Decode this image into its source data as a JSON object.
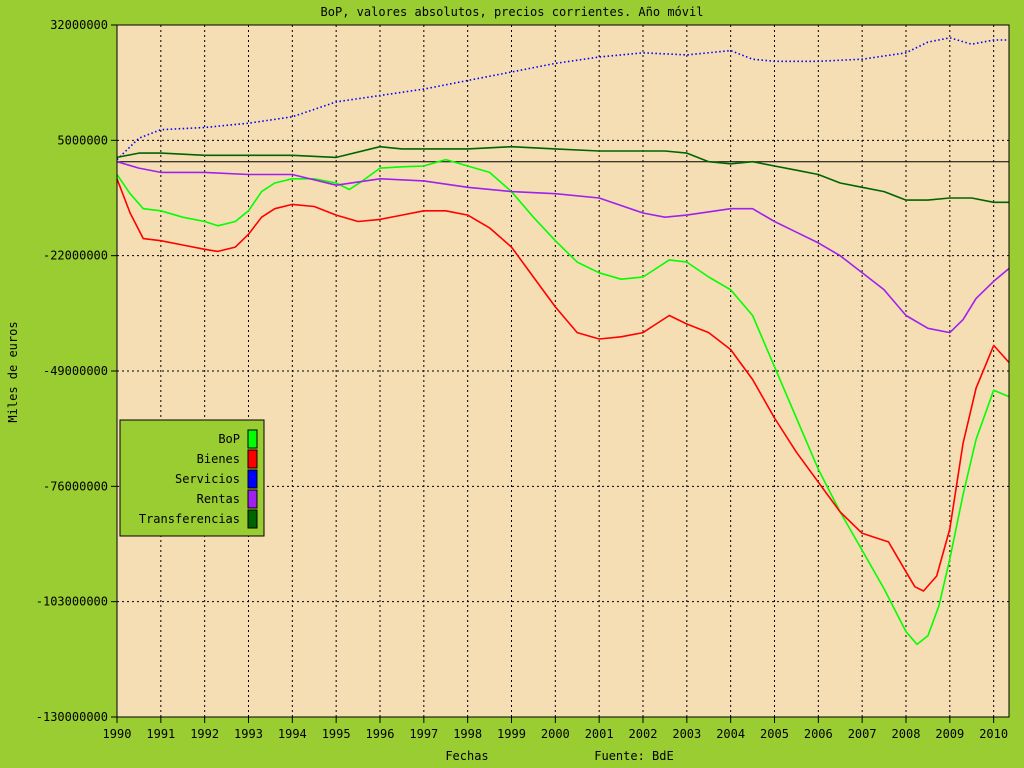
{
  "chart_data": {
    "type": "line",
    "title": "BoP, valores absolutos, precios corrientes. Año móvil",
    "xlabel": "Fechas",
    "source_label": "Fuente: BdE",
    "ylabel": "Miles de euros",
    "xlim": [
      1990,
      2010.35
    ],
    "ylim": [
      -130000000,
      32000000
    ],
    "x_ticks": [
      1990,
      1991,
      1992,
      1993,
      1994,
      1995,
      1996,
      1997,
      1998,
      1999,
      2000,
      2001,
      2002,
      2003,
      2004,
      2005,
      2006,
      2007,
      2008,
      2009,
      2010
    ],
    "y_ticks": [
      32000000,
      5000000,
      -22000000,
      -49000000,
      -76000000,
      -103000000,
      -130000000
    ],
    "y_tick_labels": [
      "32000000",
      "5000000",
      "-22000000",
      "-49000000",
      "-76000000",
      "-103000000",
      "-130000000"
    ],
    "zero_line": 0,
    "grid": true,
    "legend_position": "left",
    "colors": {
      "background": "#9acd32",
      "plot_background": "#f5deb3",
      "grid": "#000000"
    },
    "series": [
      {
        "name": "BoP",
        "color": "#00ff00",
        "style": "solid",
        "x": [
          1990.0,
          1990.3,
          1990.6,
          1991.0,
          1991.5,
          1992.0,
          1992.3,
          1992.7,
          1993.0,
          1993.3,
          1993.6,
          1994.0,
          1994.5,
          1995.0,
          1995.3,
          1995.6,
          1996.0,
          1996.5,
          1997.0,
          1997.5,
          1998.0,
          1998.5,
          1999.0,
          1999.5,
          2000.0,
          2000.5,
          2001.0,
          2001.5,
          2002.0,
          2002.3,
          2002.6,
          2003.0,
          2003.5,
          2004.0,
          2004.5,
          2005.0,
          2005.5,
          2006.0,
          2006.5,
          2007.0,
          2007.5,
          2008.0,
          2008.25,
          2008.5,
          2008.75,
          2009.0,
          2009.3,
          2009.6,
          2010.0,
          2010.35
        ],
        "y": [
          -3000000,
          -7500000,
          -11000000,
          -11500000,
          -13000000,
          -14000000,
          -15000000,
          -14000000,
          -11500000,
          -7000000,
          -5000000,
          -4000000,
          -4000000,
          -5000000,
          -6500000,
          -4500000,
          -1500000,
          -1200000,
          -1000000,
          500000,
          -1000000,
          -2500000,
          -7000000,
          -13000000,
          -18500000,
          -23500000,
          -26000000,
          -27500000,
          -27000000,
          -25000000,
          -23000000,
          -23500000,
          -27000000,
          -30000000,
          -36000000,
          -48000000,
          -60000000,
          -72000000,
          -82000000,
          -91000000,
          -100000000,
          -110000000,
          -113000000,
          -111000000,
          -104000000,
          -93000000,
          -78000000,
          -65000000,
          -53500000,
          -55000000
        ]
      },
      {
        "name": "Bienes",
        "color": "#ff0000",
        "style": "solid",
        "x": [
          1990.0,
          1990.3,
          1990.6,
          1991.0,
          1991.5,
          1992.0,
          1992.3,
          1992.7,
          1993.0,
          1993.3,
          1993.6,
          1994.0,
          1994.5,
          1995.0,
          1995.5,
          1996.0,
          1996.5,
          1997.0,
          1997.5,
          1998.0,
          1998.5,
          1999.0,
          1999.5,
          2000.0,
          2000.5,
          2001.0,
          2001.5,
          2002.0,
          2002.3,
          2002.6,
          2003.0,
          2003.5,
          2004.0,
          2004.5,
          2005.0,
          2005.5,
          2006.0,
          2006.5,
          2007.0,
          2007.3,
          2007.6,
          2008.0,
          2008.2,
          2008.4,
          2008.7,
          2009.0,
          2009.3,
          2009.6,
          2010.0,
          2010.35
        ],
        "y": [
          -4000000,
          -12000000,
          -18000000,
          -18500000,
          -19500000,
          -20500000,
          -21000000,
          -20000000,
          -17000000,
          -13000000,
          -11000000,
          -10000000,
          -10500000,
          -12500000,
          -14000000,
          -13500000,
          -12500000,
          -11500000,
          -11500000,
          -12500000,
          -15500000,
          -20000000,
          -27000000,
          -34000000,
          -40000000,
          -41500000,
          -41000000,
          -40000000,
          -38000000,
          -36000000,
          -38000000,
          -40000000,
          -44000000,
          -51000000,
          -60000000,
          -68000000,
          -75000000,
          -82000000,
          -87000000,
          -88000000,
          -89000000,
          -96000000,
          -99500000,
          -100500000,
          -97000000,
          -86000000,
          -66000000,
          -53000000,
          -43000000,
          -47000000
        ]
      },
      {
        "name": "Servicios",
        "color": "#0000ff",
        "style": "dotted",
        "x": [
          1990.0,
          1990.5,
          1991.0,
          1992.0,
          1993.0,
          1994.0,
          1995.0,
          1996.0,
          1997.0,
          1998.0,
          1999.0,
          2000.0,
          2001.0,
          2002.0,
          2003.0,
          2004.0,
          2004.5,
          2005.0,
          2006.0,
          2007.0,
          2008.0,
          2008.5,
          2009.0,
          2009.5,
          2010.0,
          2010.35
        ],
        "y": [
          500000,
          5500000,
          7500000,
          8000000,
          9000000,
          10500000,
          14000000,
          15500000,
          17000000,
          19000000,
          21000000,
          23000000,
          24500000,
          25500000,
          25000000,
          26000000,
          24000000,
          23500000,
          23500000,
          24000000,
          25500000,
          28000000,
          29000000,
          27500000,
          28500000,
          28500000
        ]
      },
      {
        "name": "Rentas",
        "color": "#a020f0",
        "style": "solid",
        "x": [
          1990.0,
          1990.5,
          1991.0,
          1992.0,
          1993.0,
          1994.0,
          1995.0,
          1996.0,
          1997.0,
          1998.0,
          1999.0,
          2000.0,
          2001.0,
          2002.0,
          2002.5,
          2003.0,
          2004.0,
          2004.5,
          2005.0,
          2005.5,
          2006.0,
          2006.5,
          2007.0,
          2007.5,
          2008.0,
          2008.5,
          2009.0,
          2009.3,
          2009.6,
          2010.0,
          2010.35
        ],
        "y": [
          0,
          -1500000,
          -2500000,
          -2500000,
          -3000000,
          -3000000,
          -5500000,
          -4000000,
          -4500000,
          -6000000,
          -7000000,
          -7500000,
          -8500000,
          -12000000,
          -13000000,
          -12500000,
          -11000000,
          -11000000,
          -14000000,
          -16500000,
          -19000000,
          -22000000,
          -26000000,
          -30000000,
          -36000000,
          -39000000,
          -40000000,
          -37000000,
          -32000000,
          -28000000,
          -25000000
        ]
      },
      {
        "name": "Transferencias",
        "color": "#006400",
        "style": "solid",
        "x": [
          1990.0,
          1990.5,
          1991.0,
          1992.0,
          1993.0,
          1994.0,
          1995.0,
          1996.0,
          1996.5,
          1997.0,
          1998.0,
          1999.0,
          2000.0,
          2001.0,
          2002.0,
          2002.5,
          2003.0,
          2003.5,
          2004.0,
          2004.5,
          2005.0,
          2005.5,
          2006.0,
          2006.5,
          2007.0,
          2007.5,
          2008.0,
          2008.5,
          2009.0,
          2009.5,
          2010.0,
          2010.35
        ],
        "y": [
          1000000,
          2000000,
          2000000,
          1500000,
          1500000,
          1500000,
          1000000,
          3500000,
          3000000,
          3000000,
          3000000,
          3500000,
          3000000,
          2500000,
          2500000,
          2500000,
          2000000,
          0,
          -500000,
          0,
          -1000000,
          -2000000,
          -3000000,
          -5000000,
          -6000000,
          -7000000,
          -9000000,
          -9000000,
          -8500000,
          -8500000,
          -9500000,
          -9500000
        ]
      }
    ]
  }
}
